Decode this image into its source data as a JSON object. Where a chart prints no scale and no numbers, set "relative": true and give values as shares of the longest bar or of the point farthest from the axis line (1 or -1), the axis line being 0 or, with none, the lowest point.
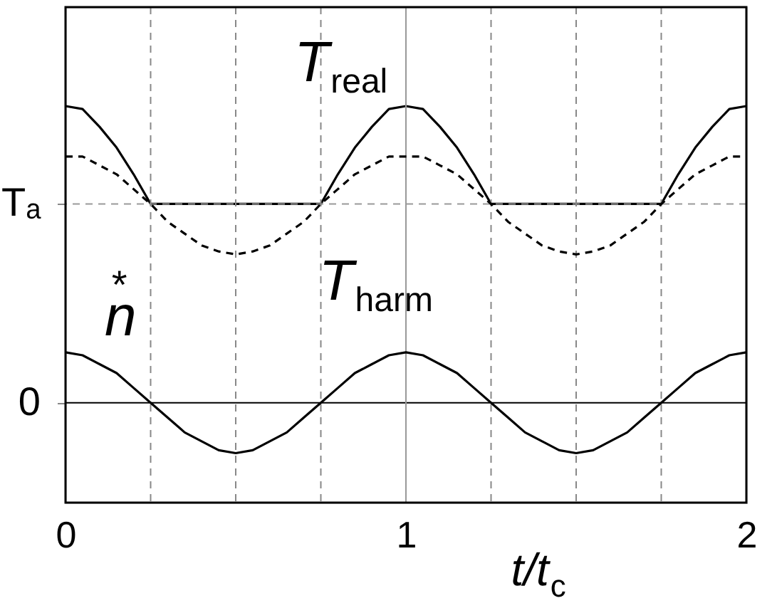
{
  "chart_data": {
    "type": "line",
    "xlabel": "t/t$_{c}$",
    "relative": true,
    "x": [
      0,
      0.05,
      0.1,
      0.15,
      0.2,
      0.25,
      0.3,
      0.35,
      0.4,
      0.45,
      0.5,
      0.55,
      0.6,
      0.65,
      0.7,
      0.75,
      0.8,
      0.85,
      0.9,
      0.95,
      1,
      1.05,
      1.1,
      1.15,
      1.2,
      1.25,
      1.3,
      1.35,
      1.4,
      1.45,
      1.5,
      1.55,
      1.6,
      1.65,
      1.7,
      1.75,
      1.8,
      1.85,
      1.9,
      1.95,
      2
    ],
    "series": [
      {
        "name": "T$_{real}$",
        "color": "#000000",
        "line_style": "solid",
        "values": [
          1,
          0.99,
          0.93,
          0.86,
          0.77,
          0.67,
          0.67,
          0.67,
          0.67,
          0.67,
          0.67,
          0.67,
          0.67,
          0.67,
          0.67,
          0.67,
          0.77,
          0.86,
          0.93,
          0.99,
          1,
          0.99,
          0.93,
          0.86,
          0.77,
          0.67,
          0.67,
          0.67,
          0.67,
          0.67,
          0.67,
          0.67,
          0.67,
          0.67,
          0.67,
          0.67,
          0.77,
          0.86,
          0.93,
          0.99,
          1
        ]
      },
      {
        "name": "T$_{harm}$",
        "color": "#000000",
        "line_style": "dashed",
        "values": [
          0.83,
          0.83,
          0.8,
          0.77,
          0.72,
          0.67,
          0.61,
          0.57,
          0.53,
          0.51,
          0.5,
          0.51,
          0.53,
          0.57,
          0.61,
          0.67,
          0.72,
          0.77,
          0.8,
          0.83,
          0.83,
          0.83,
          0.8,
          0.77,
          0.72,
          0.67,
          0.61,
          0.57,
          0.53,
          0.51,
          0.5,
          0.51,
          0.53,
          0.57,
          0.61,
          0.67,
          0.72,
          0.77,
          0.8,
          0.83,
          0.83
        ]
      },
      {
        "name": "n$^{*}$",
        "color": "#000000",
        "line_style": "solid",
        "values": [
          0.17,
          0.16,
          0.13,
          0.1,
          0.05,
          0,
          -0.05,
          -0.1,
          -0.13,
          -0.16,
          -0.17,
          -0.16,
          -0.13,
          -0.1,
          -0.05,
          0,
          0.05,
          0.1,
          0.13,
          0.16,
          0.17,
          0.16,
          0.13,
          0.1,
          0.05,
          0,
          -0.05,
          -0.1,
          -0.13,
          -0.16,
          -0.17,
          -0.16,
          -0.13,
          -0.1,
          -0.05,
          0,
          0.05,
          0.1,
          0.13,
          0.16,
          0.17
        ]
      }
    ],
    "xlim": [
      0,
      2
    ],
    "xticks": [
      0,
      1,
      2
    ],
    "ref_lines": [
      {
        "axis": "y",
        "value": 0,
        "label": "0",
        "color": "#000000",
        "line_style": "solid"
      },
      {
        "axis": "y",
        "value": 0.67,
        "label": "Tₐ",
        "color": "#999999",
        "line_style": "dashed"
      },
      {
        "axis": "x",
        "value": 0.25,
        "color": "#888888",
        "line_style": "dashed"
      },
      {
        "axis": "x",
        "value": 0.5,
        "color": "#888888",
        "line_style": "dashed"
      },
      {
        "axis": "x",
        "value": 0.75,
        "color": "#888888",
        "line_style": "dashed"
      },
      {
        "axis": "x",
        "value": 1,
        "color": "#999999",
        "line_style": "solid"
      },
      {
        "axis": "x",
        "value": 1.25,
        "color": "#888888",
        "line_style": "dashed"
      },
      {
        "axis": "x",
        "value": 1.5,
        "color": "#888888",
        "line_style": "dashed"
      },
      {
        "axis": "x",
        "value": 1.75,
        "color": "#888888",
        "line_style": "dashed"
      }
    ],
    "grid": false,
    "legend": false,
    "marker": "none"
  }
}
